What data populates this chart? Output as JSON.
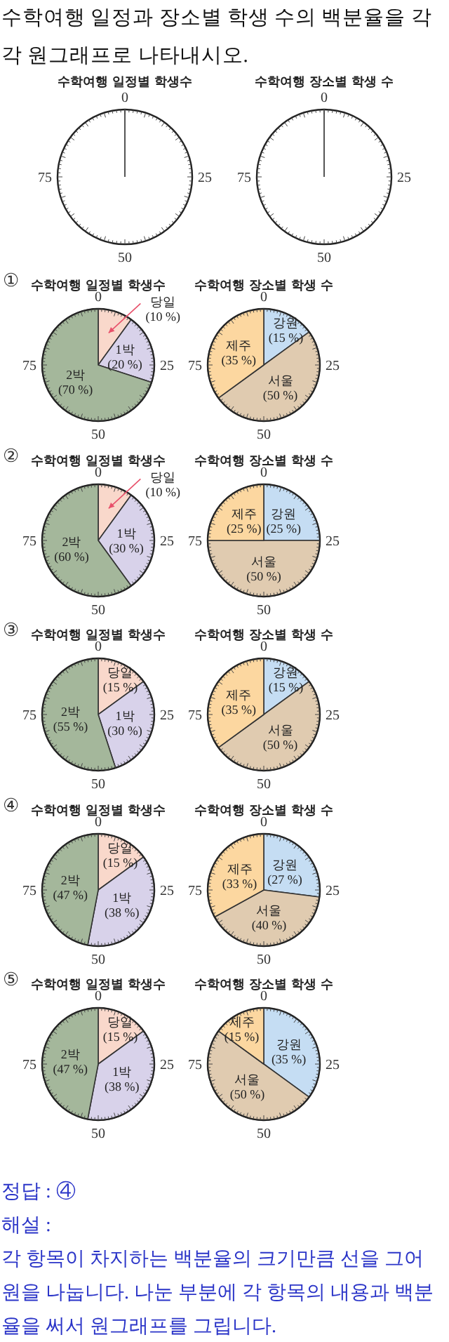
{
  "chart_data": [
    {
      "type": "other",
      "title": "수학여행 일정과 장소별 학생 수의 백분율을 각각 원그래프로 나타내시오."
    },
    {
      "type": "other",
      "title": "수학여행 일정별 학생수",
      "annotations": [
        "0",
        "25",
        "50",
        "75"
      ]
    },
    {
      "type": "other",
      "title": "수학여행 장소별 학생 수",
      "annotations": [
        "0",
        "25",
        "50",
        "75"
      ]
    },
    {
      "type": "pie",
      "title": "수학여행 일정별 학생수",
      "annotations": [
        "0",
        "25",
        "50",
        "75",
        "①"
      ],
      "categories": [
        "당일",
        "1박",
        "2박"
      ],
      "values": [
        10,
        20,
        70
      ],
      "value_labels": [
        "(10 %)",
        "(20 %)",
        "(70 %)"
      ],
      "colors": [
        "#f9d8cb",
        "#d8d2ea",
        "#a4b79b"
      ]
    },
    {
      "type": "pie",
      "title": "수학여행 장소별 학생 수",
      "annotations": [
        "0",
        "25",
        "50",
        "75"
      ],
      "categories": [
        "강원",
        "서울",
        "제주"
      ],
      "values": [
        15,
        50,
        35
      ],
      "value_labels": [
        "(15 %)",
        "(50 %)",
        "(35 %)"
      ],
      "colors": [
        "#c5ddf3",
        "#e0cbb0",
        "#fcd7a0"
      ]
    },
    {
      "type": "pie",
      "title": "수학여행 일정별 학생수",
      "annotations": [
        "0",
        "25",
        "50",
        "75",
        "②"
      ],
      "categories": [
        "당일",
        "1박",
        "2박"
      ],
      "values": [
        10,
        30,
        60
      ],
      "value_labels": [
        "(10 %)",
        "(30 %)",
        "(60 %)"
      ],
      "colors": [
        "#f9d8cb",
        "#d8d2ea",
        "#a4b79b"
      ]
    },
    {
      "type": "pie",
      "title": "수학여행 장소별 학생 수",
      "annotations": [
        "0",
        "25",
        "50",
        "75"
      ],
      "categories": [
        "강원",
        "서울",
        "제주"
      ],
      "values": [
        25,
        50,
        25
      ],
      "value_labels": [
        "(25 %)",
        "(50 %)",
        "(25 %)"
      ],
      "colors": [
        "#c5ddf3",
        "#e0cbb0",
        "#fcd7a0"
      ]
    },
    {
      "type": "pie",
      "title": "수학여행 일정별 학생수",
      "annotations": [
        "0",
        "25",
        "50",
        "75",
        "③"
      ],
      "categories": [
        "당일",
        "1박",
        "2박"
      ],
      "values": [
        15,
        30,
        55
      ],
      "value_labels": [
        "(15 %)",
        "(30 %)",
        "(55 %)"
      ],
      "colors": [
        "#f9d8cb",
        "#d8d2ea",
        "#a4b79b"
      ]
    },
    {
      "type": "pie",
      "title": "수학여행 장소별 학생 수",
      "annotations": [
        "0",
        "25",
        "50",
        "75"
      ],
      "categories": [
        "강원",
        "서울",
        "제주"
      ],
      "values": [
        15,
        50,
        35
      ],
      "value_labels": [
        "(15 %)",
        "(50 %)",
        "(35 %)"
      ],
      "colors": [
        "#c5ddf3",
        "#e0cbb0",
        "#fcd7a0"
      ]
    },
    {
      "type": "pie",
      "title": "수학여행 일정별 학생수",
      "annotations": [
        "0",
        "25",
        "50",
        "75",
        "④"
      ],
      "categories": [
        "당일",
        "1박",
        "2박"
      ],
      "values": [
        15,
        38,
        47
      ],
      "value_labels": [
        "(15 %)",
        "(38 %)",
        "(47 %)"
      ],
      "colors": [
        "#f9d8cb",
        "#d8d2ea",
        "#a4b79b"
      ]
    },
    {
      "type": "pie",
      "title": "수학여행 장소별 학생 수",
      "annotations": [
        "0",
        "25",
        "50",
        "75"
      ],
      "categories": [
        "강원",
        "서울",
        "제주"
      ],
      "values": [
        27,
        40,
        33
      ],
      "value_labels": [
        "(27 %)",
        "(40 %)",
        "(33 %)"
      ],
      "colors": [
        "#c5ddf3",
        "#e0cbb0",
        "#fcd7a0"
      ]
    },
    {
      "type": "pie",
      "title": "수학여행 일정별 학생수",
      "annotations": [
        "0",
        "25",
        "50",
        "75",
        "⑤"
      ],
      "categories": [
        "당일",
        "1박",
        "2박"
      ],
      "values": [
        15,
        38,
        47
      ],
      "value_labels": [
        "(15 %)",
        "(38 %)",
        "(47 %)"
      ],
      "colors": [
        "#f9d8cb",
        "#d8d2ea",
        "#a4b79b"
      ]
    },
    {
      "type": "pie",
      "title": "수학여행 장소별 학생 수",
      "annotations": [
        "0",
        "25",
        "50",
        "75"
      ],
      "categories": [
        "강원",
        "서울",
        "제주"
      ],
      "values": [
        35,
        50,
        15
      ],
      "value_labels": [
        "(35 %)",
        "(50 %)",
        "(15 %)"
      ],
      "colors": [
        "#c5ddf3",
        "#e0cbb0",
        "#fcd7a0"
      ]
    },
    {
      "type": "other",
      "annotations": [
        "정답 : ④",
        "해설 :",
        "각 항목이 차지하는 백분율의 크기만큼 선을 그어 원을 나눕니다. 나눈 부분에 각 항목의 내용과 백분율을 써서 원그래프를 그립니다."
      ]
    }
  ]
}
